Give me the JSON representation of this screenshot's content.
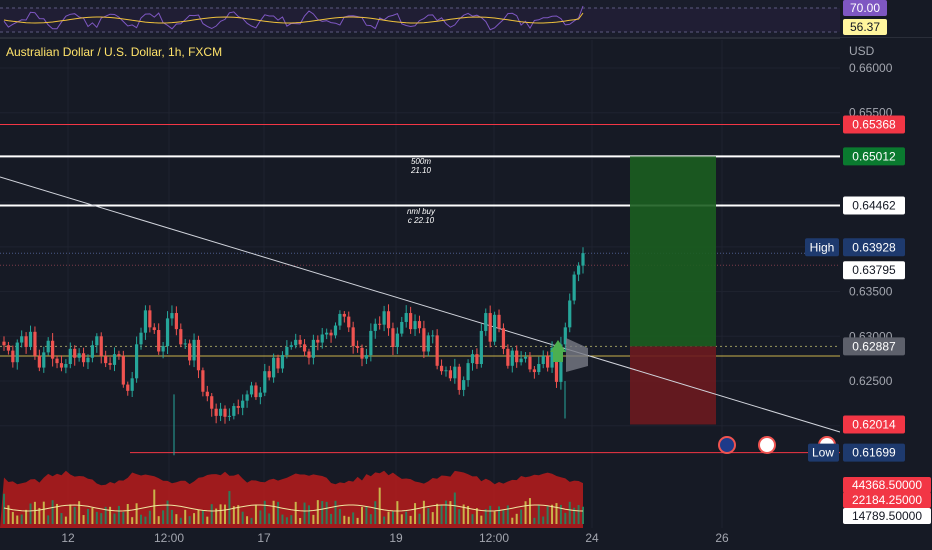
{
  "chart_data": {
    "type": "candlestick",
    "title": "Australian Dollar / U.S. Dollar, 1h, FXCM",
    "currency": "USD",
    "ylim": [
      0.616,
      0.662
    ],
    "y_ticks": [
      "0.66000",
      "0.65500",
      "0.65000",
      "0.64500",
      "0.64000",
      "0.63500",
      "0.63000",
      "0.62500"
    ],
    "x_ticks": [
      "12",
      "12:00",
      "17",
      "19",
      "12:00",
      "24",
      "26"
    ],
    "series_close": [
      0.629,
      0.6284,
      0.6271,
      0.6293,
      0.63,
      0.6288,
      0.6305,
      0.6278,
      0.6265,
      0.6282,
      0.6295,
      0.6275,
      0.627,
      0.6265,
      0.6269,
      0.6286,
      0.6276,
      0.6281,
      0.6271,
      0.6276,
      0.629,
      0.63,
      0.6278,
      0.627,
      0.6268,
      0.628,
      0.6278,
      0.6246,
      0.6239,
      0.6253,
      0.6291,
      0.6304,
      0.6329,
      0.631,
      0.6307,
      0.6283,
      0.6289,
      0.632,
      0.6326,
      0.6308,
      0.6291,
      0.6292,
      0.6273,
      0.6296,
      0.6262,
      0.6238,
      0.6233,
      0.6219,
      0.6211,
      0.6219,
      0.621,
      0.6211,
      0.6222,
      0.622,
      0.6228,
      0.6235,
      0.6245,
      0.6232,
      0.6237,
      0.6261,
      0.6254,
      0.6276,
      0.6264,
      0.6279,
      0.6288,
      0.629,
      0.6296,
      0.6291,
      0.6283,
      0.6276,
      0.6296,
      0.6293,
      0.6302,
      0.6304,
      0.6301,
      0.6312,
      0.6325,
      0.6322,
      0.631,
      0.6289,
      0.6287,
      0.6275,
      0.6279,
      0.6306,
      0.6314,
      0.6313,
      0.6328,
      0.6309,
      0.6288,
      0.6303,
      0.6316,
      0.6326,
      0.6308,
      0.6317,
      0.6309,
      0.6283,
      0.6301,
      0.6301,
      0.6267,
      0.6261,
      0.6262,
      0.6253,
      0.6266,
      0.624,
      0.6251,
      0.627,
      0.628,
      0.6269,
      0.6306,
      0.6326,
      0.6294,
      0.6324,
      0.6309,
      0.6286,
      0.6267,
      0.6284,
      0.6271,
      0.6275,
      0.6277,
      0.6263,
      0.626,
      0.6269,
      0.6278,
      0.6265,
      0.6287,
      0.6249,
      0.6291,
      0.631,
      0.634,
      0.6369,
      0.6379,
      0.6393
    ],
    "levels": [
      {
        "price": 0.65368,
        "label": "0.65368",
        "color": "#f23645"
      },
      {
        "price": 0.65012,
        "label": "0.65012",
        "color": "#ffffff"
      },
      {
        "price": 0.64462,
        "label": "0.64462",
        "color": "#ffffff"
      },
      {
        "price": 0.63928,
        "label": "0.63928",
        "color": "#2962ff"
      },
      {
        "price": 0.63795,
        "label": "0.63795",
        "color": "#ffffff"
      },
      {
        "price": 0.62887,
        "label": "0.62887",
        "color": "#787b86"
      },
      {
        "price": 0.62014,
        "label": "0.62014",
        "color": "#f23645"
      },
      {
        "price": 0.61699,
        "label": "0.61699",
        "color": "#2962ff"
      }
    ],
    "high_label": "High",
    "low_label": "Low",
    "annotations": [
      {
        "lines": [
          "500m",
          "21.10"
        ]
      },
      {
        "lines": [
          "nml buy",
          "c 22.10"
        ]
      }
    ],
    "position": {
      "entry": 0.62887,
      "target": 0.65012,
      "stop": 0.62014
    },
    "rsi": {
      "labels": [
        "70.00",
        "56.37"
      ]
    },
    "volume": {
      "labels": [
        "44368.50000",
        "22184.25000",
        "14789.50000"
      ]
    },
    "colors": {
      "up": "#26a69a",
      "down": "#ef5350",
      "background": "#161a25",
      "rsi_line": "#7e57c2",
      "rsi_ma": "#f0c23c",
      "volume_band": "#b71c1c"
    }
  }
}
